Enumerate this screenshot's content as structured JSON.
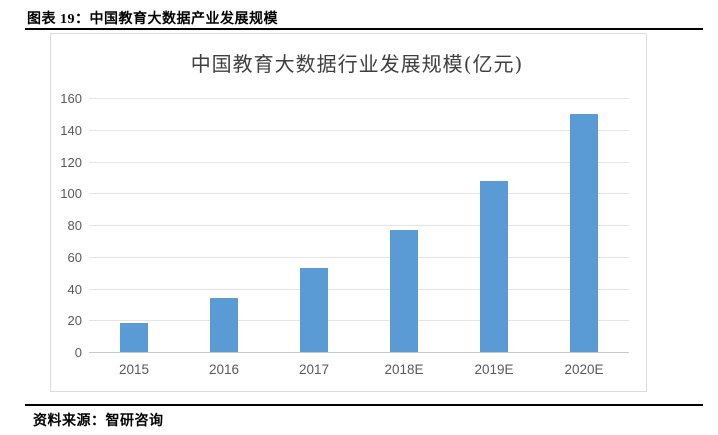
{
  "page": {
    "figure_caption": "图表 19：中国教育大数据产业发展规模",
    "source_note": "资料来源：智研咨询"
  },
  "chart_data": {
    "type": "bar",
    "title": "中国教育大数据行业发展规模(亿元)",
    "categories": [
      "2015",
      "2016",
      "2017",
      "2018E",
      "2019E",
      "2020E"
    ],
    "values": [
      18,
      34,
      53,
      77,
      108,
      150
    ],
    "xlabel": "",
    "ylabel": "",
    "ylim": [
      0,
      160
    ],
    "ytick_step": 20,
    "grid": true,
    "legend": "none",
    "colors": {
      "bar": "#5B9BD5",
      "gridline": "#E4E4E4",
      "axis_line": "#C9C9C9",
      "tick_label": "#595959",
      "title": "#3F3F3F",
      "panel_border": "#DCDCDC",
      "rule": "#000000"
    }
  }
}
